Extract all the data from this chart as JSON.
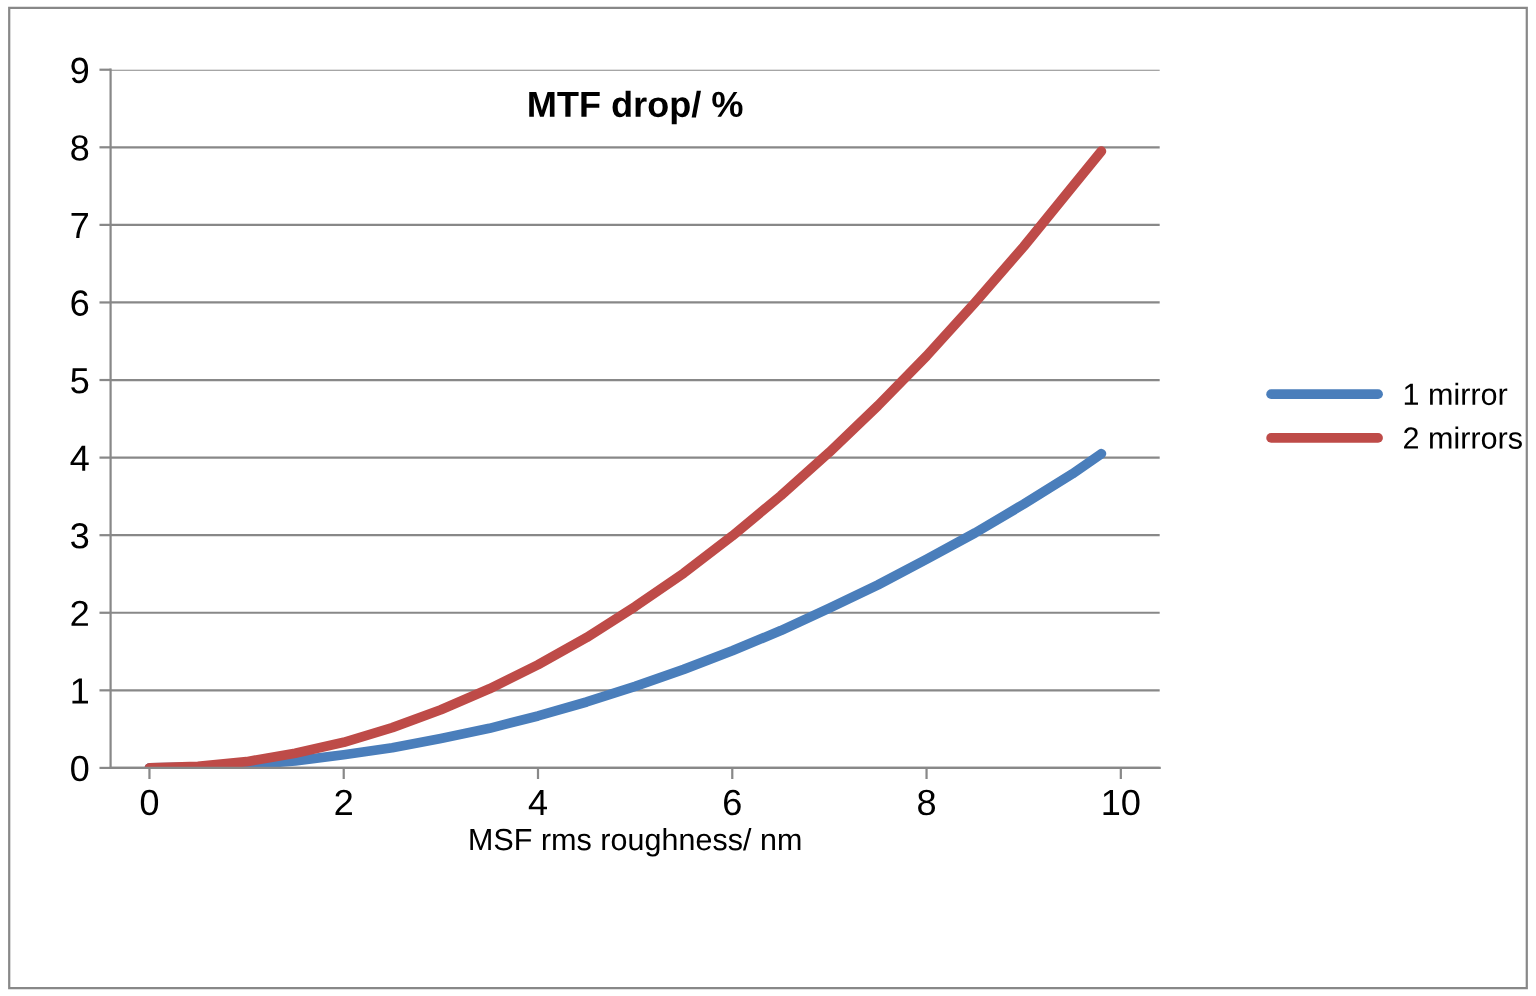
{
  "chart_data": {
    "type": "line",
    "title": "MTF drop/ %",
    "xlabel": "MSF rms roughness/ nm",
    "xlim": [
      -0.4,
      10.4
    ],
    "xticks": [
      0,
      2,
      4,
      6,
      8,
      10
    ],
    "ylim": [
      0,
      9
    ],
    "yticks": [
      0,
      1,
      2,
      3,
      4,
      5,
      6,
      7,
      8,
      9
    ],
    "grid": "y",
    "legend": "right",
    "marker": "none",
    "line_style": "solid",
    "x": [
      0,
      0.5,
      1,
      1.5,
      2,
      2.5,
      3,
      3.5,
      4,
      4.5,
      5,
      5.5,
      6,
      6.5,
      7,
      7.5,
      8,
      8.5,
      9,
      9.5,
      9.8
    ],
    "series": [
      {
        "name": "1 mirror",
        "color": "#4a7ebb",
        "values": [
          0,
          0.01,
          0.04,
          0.09,
          0.17,
          0.26,
          0.38,
          0.51,
          0.67,
          0.85,
          1.05,
          1.27,
          1.51,
          1.77,
          2.06,
          2.36,
          2.69,
          3.03,
          3.4,
          3.79,
          4.05
        ]
      },
      {
        "name": "2 mirrors",
        "color": "#be4b48",
        "values": [
          0,
          0.02,
          0.08,
          0.19,
          0.33,
          0.52,
          0.75,
          1.02,
          1.33,
          1.68,
          2.08,
          2.51,
          2.99,
          3.51,
          4.07,
          4.67,
          5.31,
          6.0,
          6.72,
          7.49,
          7.95
        ]
      }
    ]
  }
}
